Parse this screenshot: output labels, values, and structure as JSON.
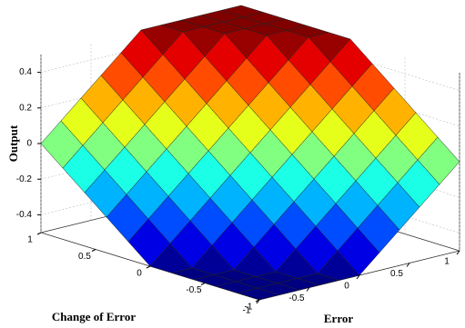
{
  "chart_data": {
    "type": "surface",
    "xlabel": "Error",
    "ylabel": "Change of Error",
    "zlabel": "Output",
    "colormap": "jet",
    "grid": true,
    "x": [
      -1,
      -0.8,
      -0.6,
      -0.4,
      -0.2,
      0,
      0.2,
      0.4,
      0.6,
      0.8,
      1
    ],
    "y": [
      -1,
      -0.8,
      -0.6,
      -0.4,
      -0.2,
      0,
      0.2,
      0.4,
      0.6,
      0.8,
      1
    ],
    "z": [
      [
        -0.5,
        -0.5,
        -0.5,
        -0.5,
        -0.5,
        -0.5,
        -0.4,
        -0.3,
        -0.2,
        -0.1,
        0
      ],
      [
        -0.5,
        -0.5,
        -0.5,
        -0.5,
        -0.5,
        -0.4,
        -0.3,
        -0.2,
        -0.1,
        0,
        0.1
      ],
      [
        -0.5,
        -0.5,
        -0.5,
        -0.5,
        -0.4,
        -0.3,
        -0.2,
        -0.1,
        0,
        0.1,
        0.2
      ],
      [
        -0.5,
        -0.5,
        -0.5,
        -0.4,
        -0.3,
        -0.2,
        -0.1,
        0,
        0.1,
        0.2,
        0.3
      ],
      [
        -0.5,
        -0.5,
        -0.4,
        -0.3,
        -0.2,
        -0.1,
        0,
        0.1,
        0.2,
        0.3,
        0.4
      ],
      [
        -0.5,
        -0.4,
        -0.3,
        -0.2,
        -0.1,
        0,
        0.1,
        0.2,
        0.3,
        0.4,
        0.5
      ],
      [
        -0.4,
        -0.3,
        -0.2,
        -0.1,
        0,
        0.1,
        0.2,
        0.3,
        0.4,
        0.5,
        0.5
      ],
      [
        -0.3,
        -0.2,
        -0.1,
        0,
        0.1,
        0.2,
        0.3,
        0.4,
        0.5,
        0.5,
        0.5
      ],
      [
        -0.2,
        -0.1,
        0,
        0.1,
        0.2,
        0.3,
        0.4,
        0.5,
        0.5,
        0.5,
        0.5
      ],
      [
        -0.1,
        0,
        0.1,
        0.2,
        0.3,
        0.4,
        0.5,
        0.5,
        0.5,
        0.5,
        0.5
      ],
      [
        0,
        0.1,
        0.2,
        0.3,
        0.4,
        0.5,
        0.5,
        0.5,
        0.5,
        0.5,
        0.5
      ]
    ],
    "xlim": [
      -1,
      1
    ],
    "ylim": [
      -1,
      1
    ],
    "zlim": [
      -0.5,
      0.5
    ],
    "xticks": [
      -1,
      -0.5,
      0,
      0.5,
      1
    ],
    "yticks": [
      -1,
      -0.5,
      0,
      0.5,
      1
    ],
    "zticks": [
      -0.4,
      -0.2,
      0,
      0.2,
      0.4
    ]
  }
}
